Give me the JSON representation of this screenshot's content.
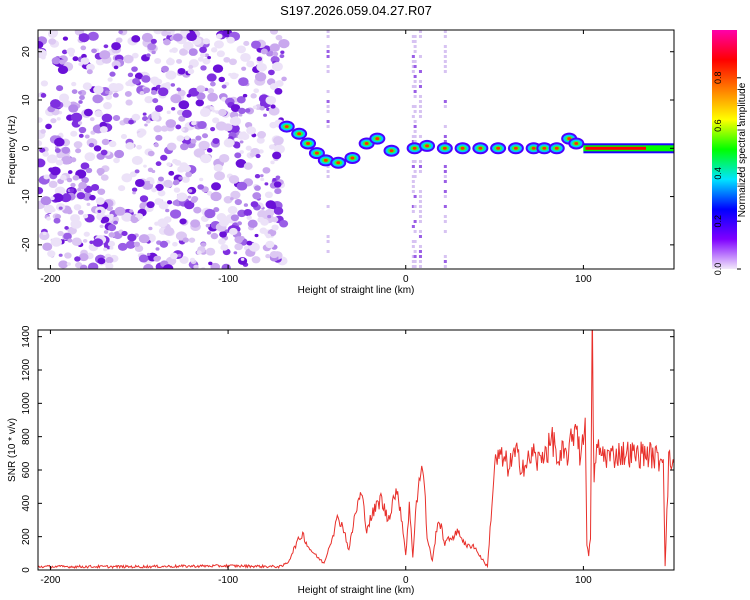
{
  "title": "S197.2026.059.04.27.R07",
  "chart_data": [
    {
      "type": "heatmap",
      "panel": "spectrogram",
      "xlabel": "Height of straight line (km)",
      "ylabel": "Frequency (Hz)",
      "xlim": [
        -207,
        151
      ],
      "ylim": [
        -25,
        24.5
      ],
      "xticks": [
        -200,
        -100,
        0,
        100
      ],
      "yticks": [
        -20,
        -10,
        0,
        10,
        20
      ],
      "noise_region": [
        -207,
        -68
      ],
      "tones": [
        {
          "h": -67,
          "f": 4.5
        },
        {
          "h": -60,
          "f": 3
        },
        {
          "h": -55,
          "f": 1
        },
        {
          "h": -50,
          "f": -1
        },
        {
          "h": -45,
          "f": -2.5
        },
        {
          "h": -38,
          "f": -3
        },
        {
          "h": -30,
          "f": -2
        },
        {
          "h": -22,
          "f": 1
        },
        {
          "h": -16,
          "f": 2
        },
        {
          "h": -8,
          "f": -0.5
        },
        {
          "h": 5,
          "f": 0
        },
        {
          "h": 12,
          "f": 0.5
        },
        {
          "h": 22,
          "f": 0
        },
        {
          "h": 32,
          "f": 0
        },
        {
          "h": 42,
          "f": 0
        },
        {
          "h": 52,
          "f": 0
        },
        {
          "h": 62,
          "f": 0
        },
        {
          "h": 72,
          "f": 0
        },
        {
          "h": 78,
          "f": 0
        },
        {
          "h": 85,
          "f": 0
        },
        {
          "h": 92,
          "f": 2
        },
        {
          "h": 96,
          "f": 1
        }
      ],
      "tone_line": {
        "from": 100,
        "to": 151,
        "f": 0
      },
      "colorbar": {
        "label": "Normalized spectral amplitude",
        "range": [
          0,
          1
        ],
        "ticks": [
          0.0,
          0.2,
          0.4,
          0.6,
          0.8
        ],
        "colors": [
          "#f2e9fa",
          "#7f00ff",
          "#0000ff",
          "#00e5ff",
          "#00ff00",
          "#ffff00",
          "#ff7f00",
          "#ff0000",
          "#ff00aa"
        ]
      }
    },
    {
      "type": "line",
      "panel": "snr",
      "xlabel": "Height of straight line (km)",
      "ylabel": "SNR (10 * v/v)",
      "xlim": [
        -207,
        151
      ],
      "ylim": [
        0,
        1440
      ],
      "xticks": [
        -200,
        -100,
        0,
        100
      ],
      "yticks": [
        0,
        200,
        400,
        600,
        800,
        1000,
        1200,
        1400
      ],
      "color": "#e8302b",
      "series": [
        {
          "name": "SNR",
          "x": [
            -207,
            -150,
            -100,
            -70,
            -66,
            -62,
            -58,
            -55,
            -50,
            -46,
            -42,
            -38,
            -35,
            -32,
            -28,
            -25,
            -22,
            -18,
            -14,
            -10,
            -6,
            -3,
            0,
            2,
            4,
            6,
            8,
            10,
            12,
            15,
            18,
            20,
            22,
            26,
            30,
            34,
            38,
            42,
            46,
            48,
            50,
            52,
            56,
            58,
            60,
            62,
            64,
            66,
            68,
            70,
            72,
            74,
            76,
            78,
            80,
            82,
            84,
            86,
            88,
            90,
            92,
            94,
            96,
            98,
            100,
            101,
            102,
            103,
            104,
            105,
            106,
            107,
            108,
            110,
            115,
            120,
            125,
            130,
            135,
            140,
            143,
            145,
            146,
            148,
            151
          ],
          "y": [
            20,
            20,
            25,
            20,
            50,
            150,
            220,
            140,
            80,
            40,
            180,
            320,
            250,
            120,
            360,
            460,
            250,
            350,
            430,
            300,
            470,
            380,
            90,
            380,
            80,
            420,
            560,
            600,
            200,
            50,
            300,
            250,
            160,
            200,
            230,
            140,
            150,
            80,
            20,
            320,
            620,
            680,
            650,
            620,
            660,
            700,
            650,
            640,
            620,
            680,
            700,
            650,
            660,
            720,
            720,
            780,
            760,
            600,
            700,
            680,
            720,
            800,
            900,
            700,
            750,
            1000,
            150,
            80,
            200,
            1440,
            500,
            700,
            720,
            700,
            680,
            700,
            700,
            690,
            700,
            680,
            660,
            700,
            30,
            650,
            640
          ]
        }
      ]
    }
  ]
}
